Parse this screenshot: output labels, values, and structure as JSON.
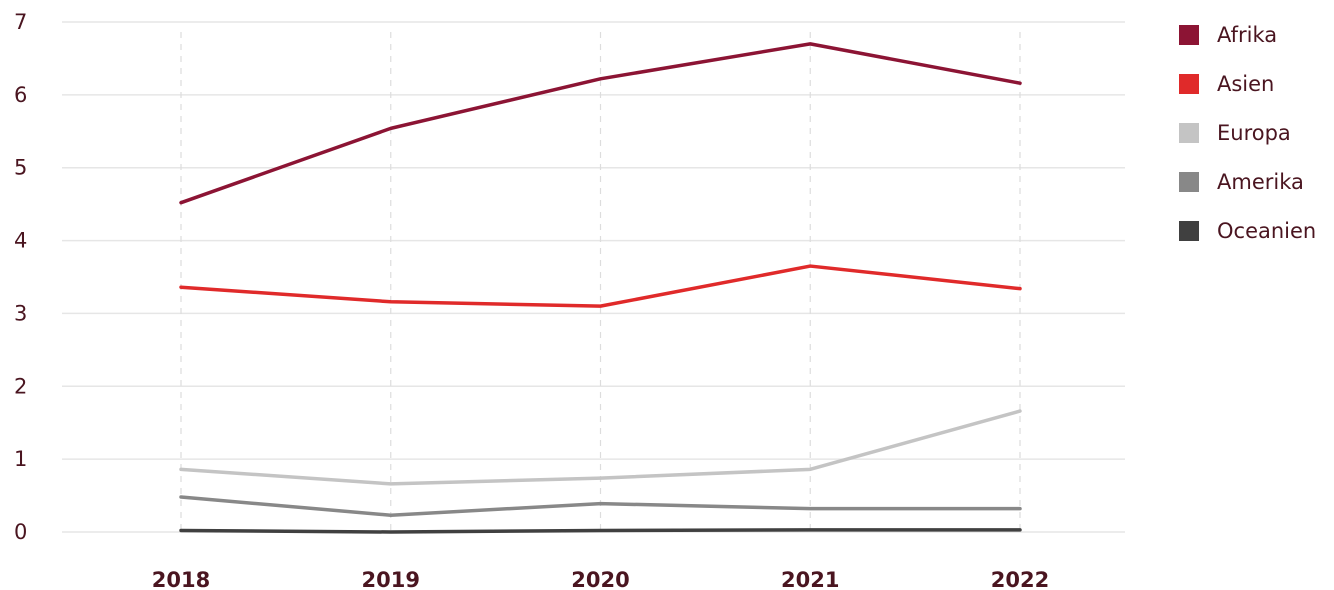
{
  "chart_data": {
    "type": "line",
    "x": [
      "2018",
      "2019",
      "2020",
      "2021",
      "2022"
    ],
    "ylim": [
      0,
      7
    ],
    "yticks": [
      "0",
      "1",
      "2",
      "3",
      "4",
      "5",
      "6",
      "7"
    ],
    "grid": true,
    "legend_position": "right",
    "series": [
      {
        "name": "Afrika",
        "color": "#8c1434",
        "values": [
          4.52,
          5.54,
          6.22,
          6.7,
          6.16
        ]
      },
      {
        "name": "Asien",
        "color": "#e02a2a",
        "values": [
          3.36,
          3.16,
          3.1,
          3.65,
          3.34
        ]
      },
      {
        "name": "Europa",
        "color": "#c4c4c4",
        "values": [
          0.86,
          0.66,
          0.74,
          0.86,
          1.66
        ]
      },
      {
        "name": "Amerika",
        "color": "#888888",
        "values": [
          0.48,
          0.23,
          0.39,
          0.32,
          0.32
        ]
      },
      {
        "name": "Oceanien",
        "color": "#404040",
        "values": [
          0.02,
          0.0,
          0.02,
          0.03,
          0.03
        ]
      }
    ]
  }
}
